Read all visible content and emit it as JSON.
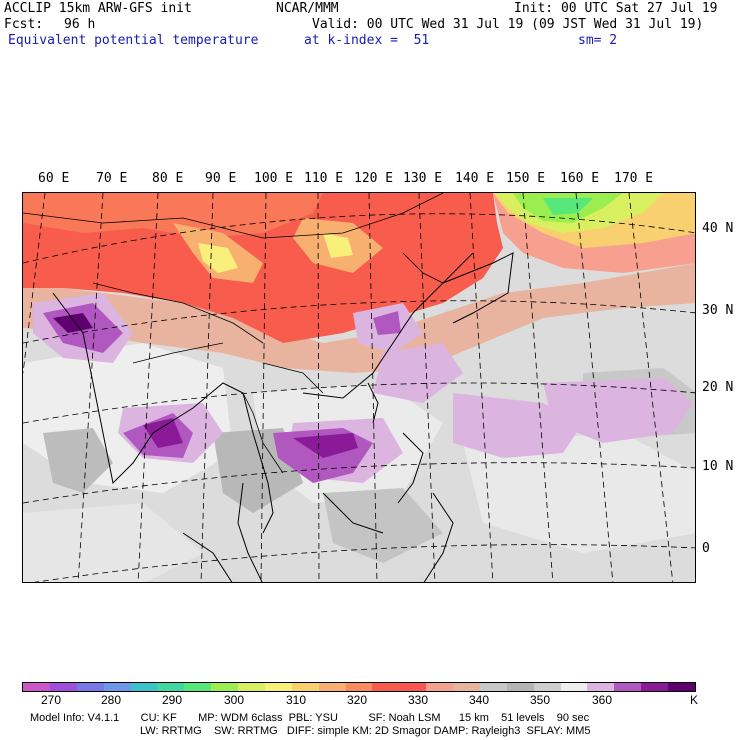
{
  "header": {
    "model": "ACCLIP 15km ARW-GFS init",
    "center": "NCAR/MMM",
    "init": "Init: 00 UTC Sat 27 Jul 19",
    "fcst_label": "Fcst:",
    "fcst_value": "96 h",
    "valid": "Valid: 00 UTC Wed 31 Jul 19 (09 JST Wed 31 Jul 19)",
    "field": "Equivalent potential temperature",
    "level": "at k-index =  51",
    "smoothing": "sm= 2"
  },
  "map": {
    "lon_labels": [
      "60 E",
      "70 E",
      "80 E",
      "90 E",
      "100 E",
      "110 E",
      "120 E",
      "130 E",
      "140 E",
      "150 E",
      "160 E",
      "170 E"
    ],
    "lat_labels": [
      "40 N",
      "30 N",
      "20 N",
      "10 N",
      "0"
    ]
  },
  "colorbar": {
    "labels": [
      "270",
      "280",
      "290",
      "300",
      "310",
      "320",
      "330",
      "340",
      "350",
      "360"
    ],
    "unit": "K",
    "colors": [
      "#cc55cc",
      "#a050d8",
      "#7a78e6",
      "#6a9ae8",
      "#3cc2cc",
      "#40d8a0",
      "#58e87a",
      "#9aee50",
      "#d8f060",
      "#f8f07a",
      "#f8d070",
      "#f8b070",
      "#f88c5c",
      "#f85c4c",
      "#f85850",
      "#f8a090",
      "#e8b4a0",
      "#c8c8c8",
      "#b4b4b4",
      "#cecece",
      "#eeeeee",
      "#dcb4e0",
      "#b058c0",
      "#8a1a98",
      "#60006e"
    ]
  },
  "footer": {
    "line1": "Model Info: V4.1.1       CU: KF       MP: WDM 6class  PBL: YSU          SF: Noah LSM      15 km    51 levels    90 sec",
    "line2": "LW: RRTMG    SW: RRTMG   DIFF: simple KM: 2D Smagor DAMP: Rayleigh3  SFLAY: MM5"
  }
}
